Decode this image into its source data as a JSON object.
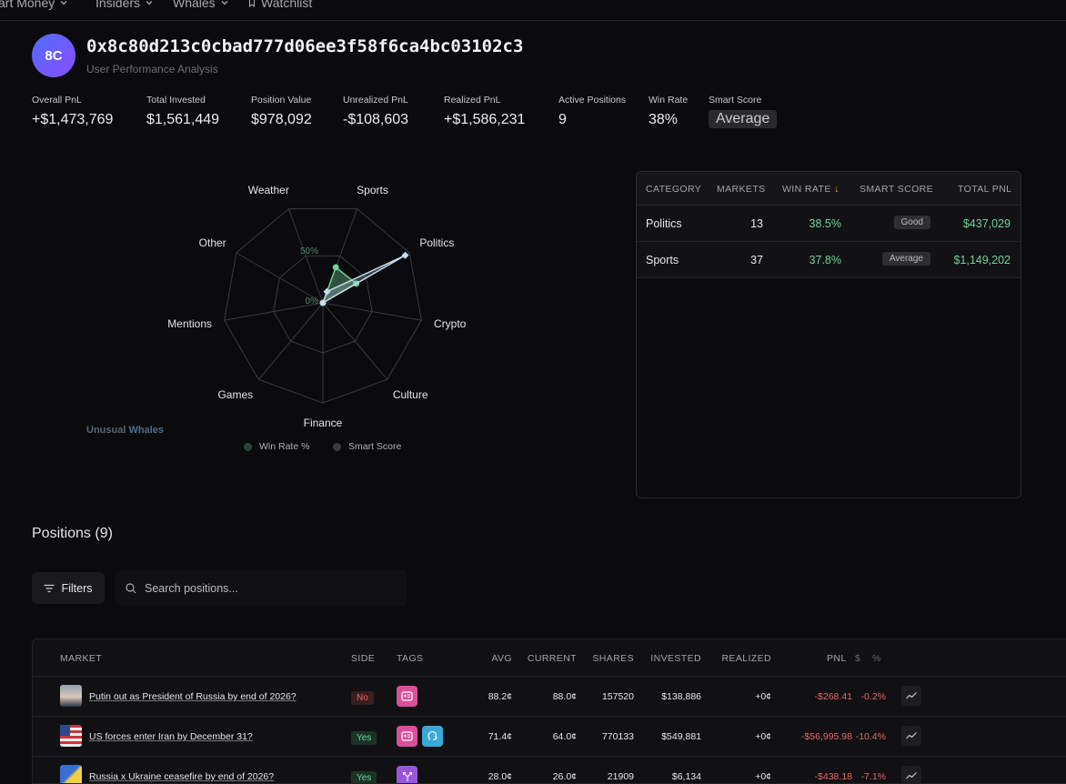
{
  "nav": {
    "items": [
      {
        "label": "art Money"
      },
      {
        "label": "Insiders"
      },
      {
        "label": "Whales"
      },
      {
        "label": "Watchlist"
      }
    ]
  },
  "profile": {
    "initials": "8C",
    "address": "0x8c80d213c0cbad777d06ee3f58f6ca4bc03102c3",
    "subtitle": "User Performance Analysis"
  },
  "stats": [
    {
      "label": "Overall PnL",
      "value": "+$1,473,769"
    },
    {
      "label": "Total Invested",
      "value": "$1,561,449"
    },
    {
      "label": "Position Value",
      "value": "$978,092"
    },
    {
      "label": "Unrealized PnL",
      "value": "-$108,603"
    },
    {
      "label": "Realized PnL",
      "value": "+$1,586,231"
    },
    {
      "label": "Active Positions",
      "value": "9"
    },
    {
      "label": "Win Rate",
      "value": "38%"
    },
    {
      "label": "Smart Score",
      "value": "Average"
    }
  ],
  "colors": {
    "positive": "#6fd29a",
    "negative": "#e36767",
    "win_rate": "#6fd29a",
    "smart_score": "#c7dcf0"
  },
  "chart_data": {
    "type": "radar",
    "categories": [
      "Sports",
      "Politics",
      "Crypto",
      "Culture",
      "Finance",
      "Games",
      "Mentions",
      "Other",
      "Weather"
    ],
    "rlim": [
      0,
      100
    ],
    "ring_labels": [
      "0%",
      "50%"
    ],
    "series": [
      {
        "name": "Win Rate %",
        "values": [
          37.8,
          38.5,
          0,
          0,
          0,
          0,
          0,
          0,
          0
        ]
      },
      {
        "name": "Smart Score",
        "values": [
          12,
          95,
          0,
          0,
          0,
          0,
          0,
          0,
          0
        ]
      }
    ],
    "legend_placement": "bottom",
    "watermark": {
      "a": "Unusual",
      "b": "Whales"
    }
  },
  "category_table": {
    "headers": {
      "category": "CATEGORY",
      "markets": "MARKETS",
      "win_rate": "WIN RATE",
      "smart_score": "SMART SCORE",
      "total_pnl": "TOTAL PNL"
    },
    "rows": [
      {
        "category": "Politics",
        "markets": "13",
        "win_rate": "38.5%",
        "smart_score": "Good",
        "total_pnl": "$437,029"
      },
      {
        "category": "Sports",
        "markets": "37",
        "win_rate": "37.8%",
        "smart_score": "Average",
        "total_pnl": "$1,149,202"
      }
    ]
  },
  "positions": {
    "title": "Positions (9)",
    "filters_label": "Filters",
    "search_placeholder": "Search positions...",
    "headers": {
      "market": "MARKET",
      "side": "SIDE",
      "tags": "TAGS",
      "avg": "AVG",
      "current": "CURRENT",
      "shares": "SHARES",
      "invested": "INVESTED",
      "realized": "REALIZED",
      "pnl": "PNL",
      "pnl_dollar": "$",
      "pnl_pct": "%"
    },
    "rows": [
      {
        "market": "Putin out as President of Russia by end of 2026?",
        "side": "No",
        "avg": "88.2¢",
        "current": "88.0¢",
        "shares": "157520",
        "invested": "$138,886",
        "realized": "+0¢",
        "pnl": "-$268.41",
        "pnl_pct": "-0.2%"
      },
      {
        "market": "US forces enter Iran by December 31?",
        "side": "Yes",
        "avg": "71.4¢",
        "current": "64.0¢",
        "shares": "770133",
        "invested": "$549,881",
        "realized": "+0¢",
        "pnl": "-$56,995.98",
        "pnl_pct": "-10.4%"
      },
      {
        "market": "Russia x Ukraine ceasefire by end of 2026?",
        "side": "Yes",
        "avg": "28.0¢",
        "current": "26.0¢",
        "shares": "21909",
        "invested": "$6,134",
        "realized": "+0¢",
        "pnl": "-$438.18",
        "pnl_pct": "-7.1%"
      }
    ]
  }
}
